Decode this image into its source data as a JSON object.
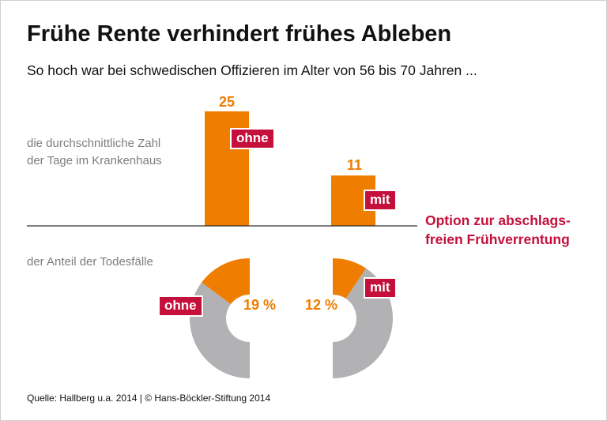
{
  "title": "Frühe Rente verhindert frühes Ableben",
  "subtitle": "So hoch war bei schwedischen Offizieren im Alter von 56 bis 70 Jahren ...",
  "legend_label": "Option zur abschlags-\nfreien Frühverrentung",
  "legend_line1": "Option zur abschlags-",
  "legend_line2": "freien Frühverrentung",
  "source": "Quelle: Hallberg u.a. 2014 | © Hans-Böckler-Stiftung 2014",
  "colors": {
    "orange": "#ef7d00",
    "grey": "#b2b2b4",
    "red": "#c4103b"
  },
  "chart_data": [
    {
      "type": "bar",
      "label_line1": "die durchschnittliche Zahl",
      "label_line2": "der Tage im Krankenhaus",
      "categories": [
        "ohne",
        "mit"
      ],
      "values": [
        25,
        11
      ],
      "value_labels": [
        "25",
        "11"
      ]
    },
    {
      "type": "pie",
      "label": "der Anteil der Todesfälle",
      "categories": [
        "ohne",
        "mit"
      ],
      "values": [
        19,
        12
      ],
      "value_labels": [
        "19 %",
        "12 %"
      ]
    }
  ]
}
